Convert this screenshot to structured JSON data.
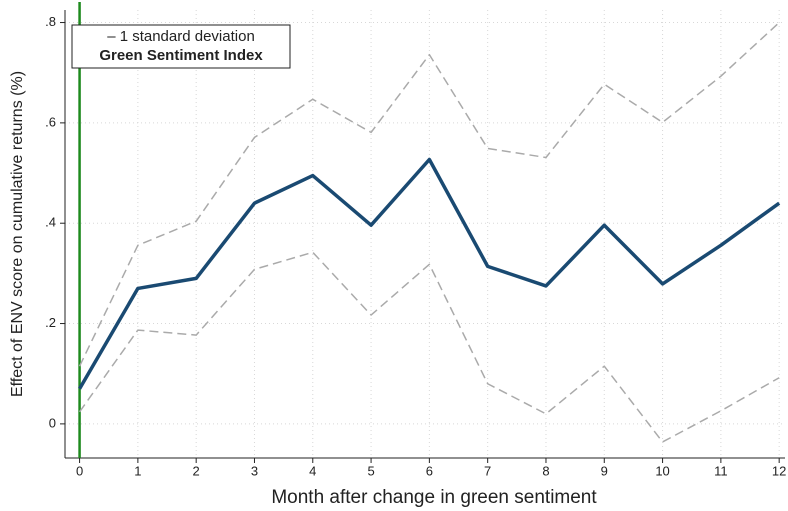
{
  "chart_data": {
    "type": "line",
    "xlabel": "Month after change in green sentiment",
    "ylabel": "Effect of ENV score on cumulative returns (%)",
    "annotations": [
      "– 1 standard deviation",
      "Green Sentiment Index"
    ],
    "x": [
      0,
      1,
      2,
      3,
      4,
      5,
      6,
      7,
      8,
      9,
      10,
      11,
      12
    ],
    "series": [
      {
        "color": "#aaaaaa",
        "dashed": true,
        "values": [
          0.115,
          0.356,
          0.404,
          0.571,
          0.647,
          0.581,
          0.736,
          0.549,
          0.531,
          0.677,
          0.601,
          0.693,
          0.8
        ]
      },
      {
        "color": "#aaaaaa",
        "dashed": true,
        "values": [
          0.024,
          0.187,
          0.177,
          0.308,
          0.342,
          0.217,
          0.318,
          0.08,
          0.02,
          0.115,
          -0.036,
          0.026,
          0.092
        ]
      },
      {
        "color": "#1a4a72",
        "dashed": false,
        "values": [
          0.07,
          0.27,
          0.29,
          0.44,
          0.495,
          0.396,
          0.527,
          0.314,
          0.275,
          0.396,
          0.279,
          0.356,
          0.44
        ]
      }
    ],
    "vline": {
      "x": 0,
      "color": "#1e8a1e"
    },
    "xlim": [
      -0.25,
      12.1
    ],
    "ylim": [
      -0.068,
      0.825
    ],
    "xticks": [
      0,
      1,
      2,
      3,
      4,
      5,
      6,
      7,
      8,
      9,
      10,
      11,
      12
    ],
    "yticks": [
      0,
      {
        "value": 0.2,
        "label": ".2"
      },
      {
        "value": 0.4,
        "label": ".4"
      },
      {
        "value": 0.6,
        "label": ".6"
      },
      {
        "value": 0.8,
        "label": ".8"
      }
    ],
    "grid": true
  }
}
